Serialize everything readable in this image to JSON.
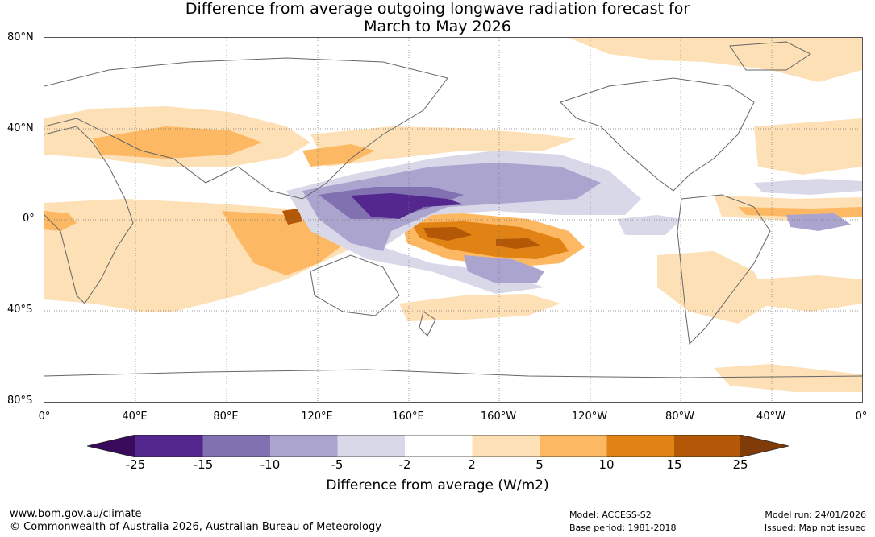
{
  "title": {
    "line1": "Difference from average outgoing longwave radiation forecast for",
    "line2": "March to May 2026"
  },
  "map": {
    "latitude_labels": [
      "80°N",
      "40°N",
      "0°",
      "40°S",
      "80°S"
    ],
    "longitude_labels": [
      "0°",
      "40°E",
      "80°E",
      "120°E",
      "160°E",
      "160°W",
      "120°W",
      "80°W",
      "40°W",
      "0°"
    ]
  },
  "legend": {
    "title": "Difference from average (W/m2)",
    "tick_labels": [
      "-25",
      "-15",
      "-10",
      "-5",
      "-2",
      "2",
      "5",
      "10",
      "15",
      "25"
    ],
    "colors": {
      "below_min": "#3a0a5c",
      "-25_to_-15": "#54278f",
      "-15_to_-10": "#8271b1",
      "-10_to_-5": "#aba4cf",
      "-5_to_-2": "#d8d8e9",
      "-2_to_2": "#ffffff",
      "2_to_5": "#fee0b6",
      "5_to_10": "#fdb863",
      "10_to_15": "#e08214",
      "15_to_25": "#b35806",
      "above_max": "#7f3b08"
    }
  },
  "footer": {
    "website": "www.bom.gov.au/climate",
    "copyright": "© Commonwealth of Australia 2026, Australian Bureau of Meteorology",
    "model": "Model: ACCESS-S2",
    "base_period": "Base period: 1981-2018",
    "model_run": "Model run: 24/01/2026",
    "issued": "Issued: Map not issued"
  }
}
